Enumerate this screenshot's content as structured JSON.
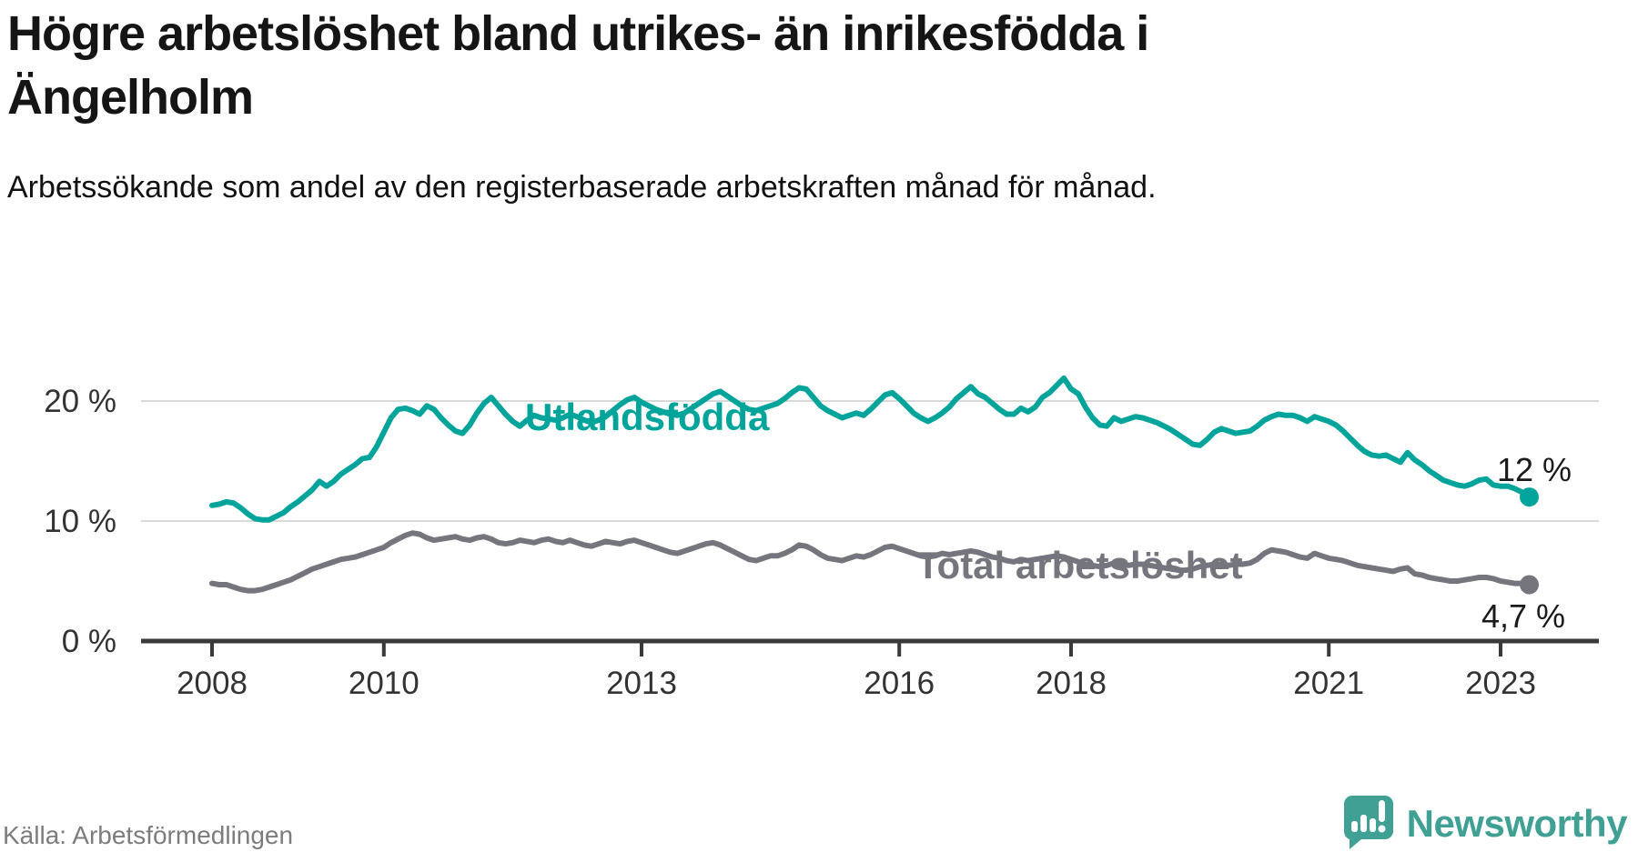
{
  "header": {
    "title": "Högre arbetslöshet bland utrikes- än inrikesfödda i Ängelholm",
    "subtitle": "Arbetssökande som andel av den registerbaserade arbetskraften månad för månad."
  },
  "footer": {
    "source": "Källa: Arbetsförmedlingen",
    "brand": "Newsworthy"
  },
  "colors": {
    "accent_teal": "#00a49a",
    "line_gray": "#75757e",
    "axis": "#3a3a3a",
    "grid": "#d9d9d9",
    "tick_text": "#333333",
    "end_label_text": "#1a1a1a",
    "source_text": "#7c7c7c",
    "brand_teal": "#3fa093"
  },
  "chart_data": {
    "type": "line",
    "title": "Högre arbetslöshet bland utrikes- än inrikesfödda i Ängelholm",
    "subtitle": "Arbetssökande som andel av den registerbaserade arbetskraften månad för månad.",
    "frequency": "monthly",
    "x_start": "2008-01",
    "x_end": "2023-05",
    "ylim": [
      0,
      23
    ],
    "grid": "horizontal",
    "legend_position": "inline-labels",
    "y_ticks": [
      {
        "label": "20 %",
        "value": 20
      },
      {
        "label": "10 %",
        "value": 10
      },
      {
        "label": "0 %",
        "value": 0
      }
    ],
    "x_ticks": [
      {
        "label": "2008",
        "year": 2008
      },
      {
        "label": "2010",
        "year": 2010
      },
      {
        "label": "2013",
        "year": 2013
      },
      {
        "label": "2016",
        "year": 2016
      },
      {
        "label": "2018",
        "year": 2018
      },
      {
        "label": "2021",
        "year": 2021
      },
      {
        "label": "2023",
        "year": 2023
      }
    ],
    "series": [
      {
        "name": "Utlandsfödda",
        "color": "#00a49a",
        "end_label": "12 %",
        "last_value": 12.0,
        "values": [
          11.3,
          11.4,
          11.6,
          11.5,
          11.1,
          10.6,
          10.2,
          10.1,
          10.1,
          10.4,
          10.7,
          11.2,
          11.6,
          12.1,
          12.6,
          13.3,
          12.9,
          13.3,
          13.9,
          14.3,
          14.7,
          15.2,
          15.3,
          16.2,
          17.4,
          18.6,
          19.3,
          19.4,
          19.2,
          18.9,
          19.6,
          19.3,
          18.6,
          18.0,
          17.5,
          17.3,
          18.0,
          19.0,
          19.8,
          20.3,
          19.6,
          18.9,
          18.3,
          17.9,
          18.4,
          18.8,
          18.6,
          18.5,
          18.4,
          18.6,
          18.9,
          18.7,
          18.4,
          18.2,
          18.4,
          18.7,
          19.2,
          19.7,
          20.1,
          20.3,
          19.9,
          19.6,
          19.3,
          19.1,
          18.9,
          18.8,
          19.0,
          19.4,
          19.8,
          20.2,
          20.6,
          20.8,
          20.4,
          20.0,
          19.6,
          19.3,
          19.2,
          19.4,
          19.6,
          19.8,
          20.2,
          20.7,
          21.1,
          21.0,
          20.3,
          19.6,
          19.2,
          18.9,
          18.6,
          18.8,
          19.0,
          18.8,
          19.3,
          19.9,
          20.5,
          20.7,
          20.2,
          19.6,
          19.0,
          18.6,
          18.3,
          18.6,
          19.0,
          19.5,
          20.2,
          20.7,
          21.2,
          20.6,
          20.3,
          19.8,
          19.3,
          18.9,
          18.9,
          19.4,
          19.1,
          19.5,
          20.3,
          20.7,
          21.3,
          21.9,
          21.0,
          20.6,
          19.5,
          18.6,
          18.0,
          17.9,
          18.6,
          18.3,
          18.5,
          18.7,
          18.6,
          18.4,
          18.2,
          17.9,
          17.6,
          17.2,
          16.8,
          16.4,
          16.3,
          16.8,
          17.4,
          17.7,
          17.5,
          17.3,
          17.4,
          17.5,
          17.9,
          18.4,
          18.7,
          18.9,
          18.8,
          18.8,
          18.6,
          18.3,
          18.7,
          18.5,
          18.3,
          18.0,
          17.5,
          16.9,
          16.3,
          15.8,
          15.5,
          15.4,
          15.5,
          15.2,
          14.9,
          15.7,
          15.1,
          14.7,
          14.2,
          13.8,
          13.4,
          13.2,
          13.0,
          12.9,
          13.1,
          13.4,
          13.5,
          13.0,
          12.9,
          12.9,
          12.7,
          12.4,
          12.0
        ]
      },
      {
        "name": "Total arbetslöshet",
        "color": "#75757e",
        "end_label": "4,7 %",
        "last_value": 4.7,
        "values": [
          4.8,
          4.7,
          4.7,
          4.5,
          4.3,
          4.2,
          4.2,
          4.3,
          4.5,
          4.7,
          4.9,
          5.1,
          5.4,
          5.7,
          6.0,
          6.2,
          6.4,
          6.6,
          6.8,
          6.9,
          7.0,
          7.2,
          7.4,
          7.6,
          7.8,
          8.2,
          8.5,
          8.8,
          9.0,
          8.9,
          8.6,
          8.4,
          8.5,
          8.6,
          8.7,
          8.5,
          8.4,
          8.6,
          8.7,
          8.5,
          8.2,
          8.1,
          8.2,
          8.4,
          8.3,
          8.2,
          8.4,
          8.5,
          8.3,
          8.2,
          8.4,
          8.2,
          8.0,
          7.9,
          8.1,
          8.3,
          8.2,
          8.1,
          8.3,
          8.4,
          8.2,
          8.0,
          7.8,
          7.6,
          7.4,
          7.3,
          7.5,
          7.7,
          7.9,
          8.1,
          8.2,
          8.0,
          7.7,
          7.4,
          7.1,
          6.8,
          6.7,
          6.9,
          7.1,
          7.1,
          7.3,
          7.6,
          8.0,
          7.9,
          7.6,
          7.2,
          6.9,
          6.8,
          6.7,
          6.9,
          7.1,
          7.0,
          7.2,
          7.5,
          7.8,
          7.9,
          7.7,
          7.5,
          7.3,
          7.1,
          7.0,
          7.1,
          7.3,
          7.2,
          7.3,
          7.4,
          7.5,
          7.4,
          7.2,
          7.0,
          6.9,
          6.7,
          6.6,
          6.8,
          6.7,
          6.8,
          6.9,
          7.0,
          7.1,
          7.0,
          6.8,
          6.6,
          6.4,
          6.3,
          6.2,
          6.3,
          6.5,
          6.4,
          6.3,
          6.4,
          6.4,
          6.3,
          6.2,
          6.1,
          6.0,
          5.9,
          5.9,
          6.0,
          6.2,
          6.3,
          6.4,
          6.4,
          6.3,
          6.4,
          6.4,
          6.5,
          6.8,
          7.3,
          7.6,
          7.5,
          7.4,
          7.2,
          7.0,
          6.9,
          7.3,
          7.1,
          6.9,
          6.8,
          6.7,
          6.5,
          6.3,
          6.2,
          6.1,
          6.0,
          5.9,
          5.8,
          6.0,
          6.1,
          5.6,
          5.5,
          5.3,
          5.2,
          5.1,
          5.0,
          5.0,
          5.1,
          5.2,
          5.3,
          5.3,
          5.2,
          5.0,
          4.9,
          4.8,
          4.8,
          4.7
        ]
      }
    ]
  }
}
